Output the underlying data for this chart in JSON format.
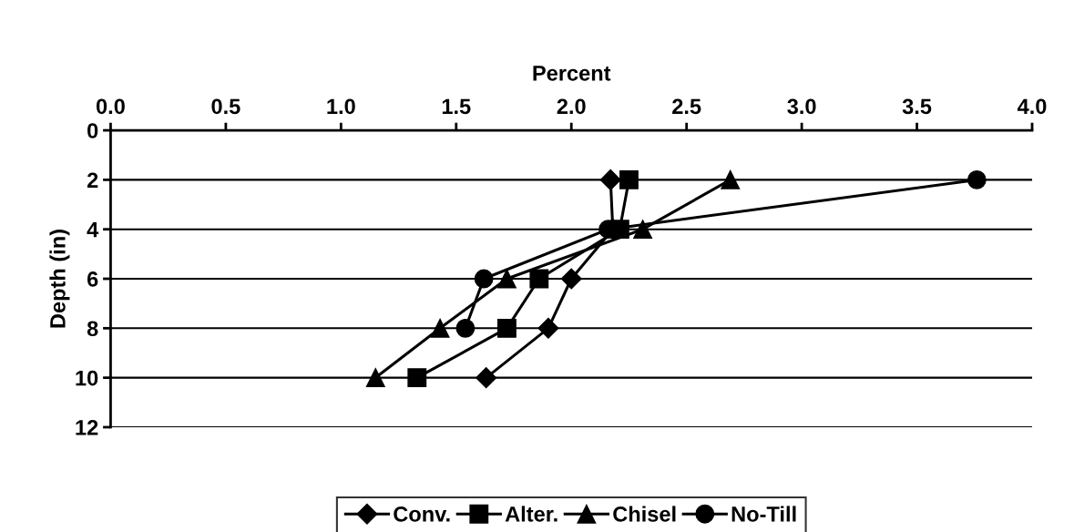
{
  "chart_data": {
    "type": "line",
    "xlabel": "Percent",
    "ylabel": "Depth (in)",
    "xlim": [
      0.0,
      4.0
    ],
    "xticks": [
      {
        "value": 0,
        "label": "0.0"
      },
      {
        "value": 0.5,
        "label": "0.5"
      },
      {
        "value": 1,
        "label": "1.0"
      },
      {
        "value": 1.5,
        "label": "1.5"
      },
      {
        "value": 2,
        "label": "2.0"
      },
      {
        "value": 2.5,
        "label": "2.5"
      },
      {
        "value": 3,
        "label": "3.0"
      },
      {
        "value": 3.5,
        "label": "3.5"
      },
      {
        "value": 4,
        "label": "4.0"
      }
    ],
    "ylim": [
      12,
      0
    ],
    "yticks": [
      0,
      2,
      4,
      6,
      8,
      10,
      12
    ],
    "grid": "y",
    "legend": "bottom",
    "orientation": "horizontal",
    "line_style": "solid",
    "x": [
      2,
      4,
      6,
      8,
      10
    ],
    "series": [
      {
        "name": "Conv.",
        "color": "#000000",
        "marker": "diamond",
        "values": [
          2.17,
          2.18,
          2.0,
          1.9,
          1.63
        ]
      },
      {
        "name": "Alter.",
        "color": "#000000",
        "marker": "square",
        "values": [
          2.25,
          2.21,
          1.86,
          1.72,
          1.33
        ]
      },
      {
        "name": "Chisel",
        "color": "#000000",
        "marker": "triangle",
        "values": [
          2.69,
          2.31,
          1.72,
          1.43,
          1.15
        ]
      },
      {
        "name": "No-Till",
        "color": "#000000",
        "marker": "circle",
        "values": [
          3.76,
          2.16,
          1.62,
          1.54,
          null
        ]
      }
    ]
  }
}
